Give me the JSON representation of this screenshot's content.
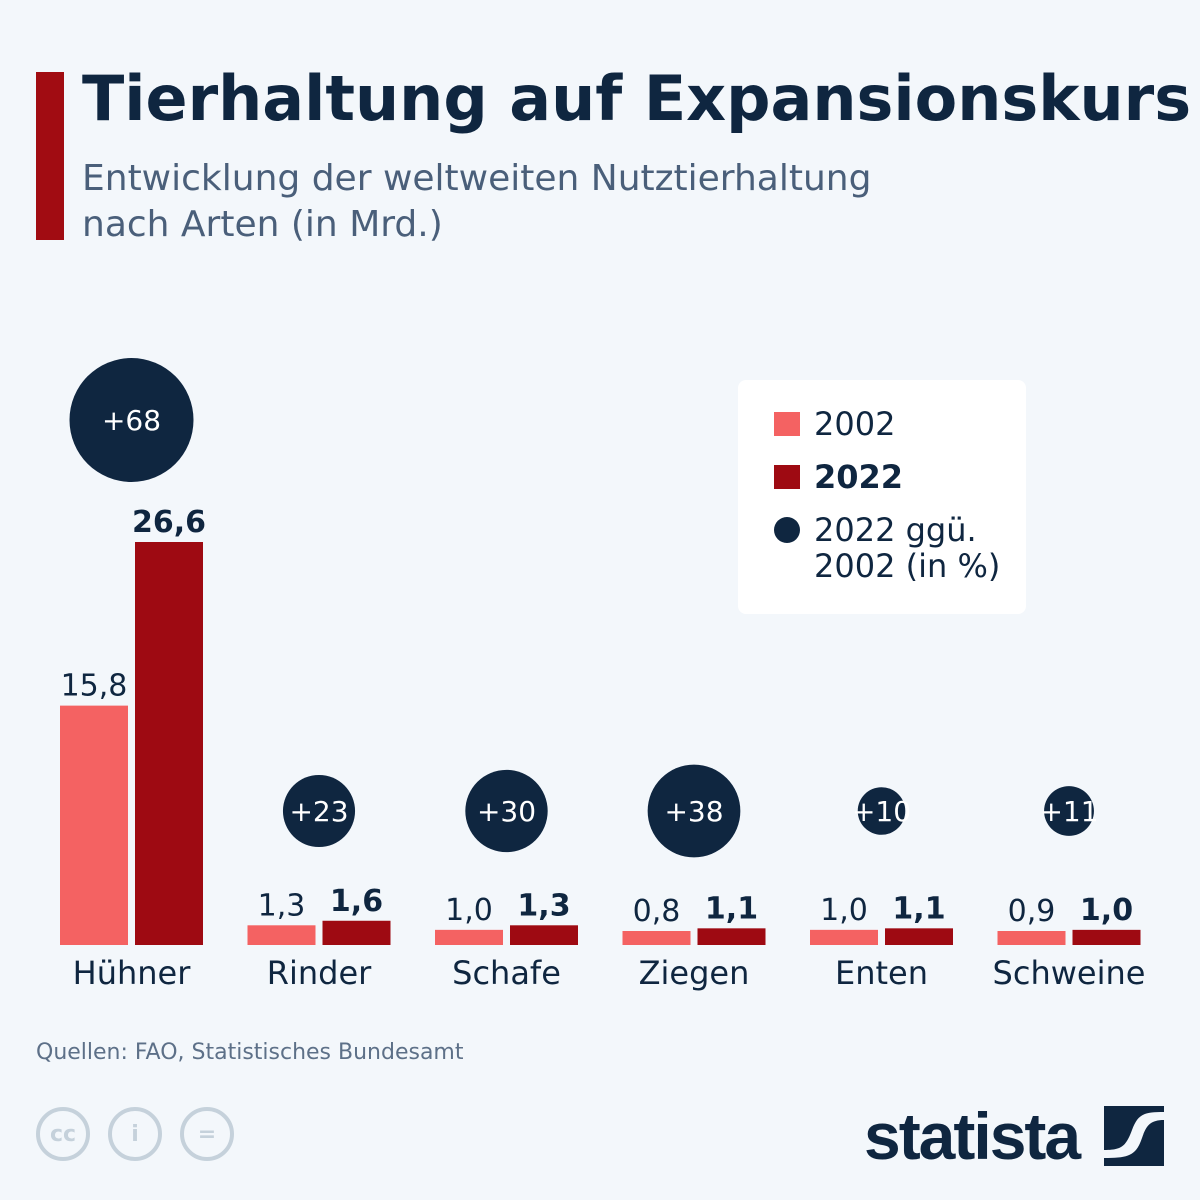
{
  "header": {
    "title": "Tierhaltung auf Expansionskurs",
    "subtitle": "Entwicklung der weltweiten Nutztierhaltung nach Arten (in Mrd.)"
  },
  "chart_data": {
    "type": "bar",
    "categories": [
      "Hühner",
      "Rinder",
      "Schafe",
      "Ziegen",
      "Enten",
      "Schweine"
    ],
    "series": [
      {
        "name": "2002",
        "values": [
          15.8,
          1.3,
          1.0,
          0.8,
          1.0,
          0.9
        ],
        "labels": [
          "15,8",
          "1,3",
          "1,0",
          "0,8",
          "1,0",
          "0,9"
        ],
        "color": "#f46262"
      },
      {
        "name": "2022",
        "values": [
          26.6,
          1.6,
          1.3,
          1.1,
          1.1,
          1.0
        ],
        "labels": [
          "26,6",
          "1,6",
          "1,3",
          "1,1",
          "1,1",
          "1,0"
        ],
        "color": "#9e0a12"
      }
    ],
    "change_pct": {
      "name": "2022 ggü. 2002 (in %)",
      "values": [
        68,
        23,
        30,
        38,
        10,
        11
      ],
      "labels": [
        "+68",
        "+23",
        "+30",
        "+38",
        "+10",
        "+11"
      ],
      "color": "#0f2640"
    },
    "ylim": [
      0,
      26.6
    ],
    "grid": false,
    "legend_placement": "top-right"
  },
  "legend": {
    "items": [
      {
        "label": "2002"
      },
      {
        "label": "2022"
      },
      {
        "label_line1": "2022 ggü.",
        "label_line2": "2002 (in %)"
      }
    ]
  },
  "footer": {
    "source": "Quellen: FAO, Statistisches Bundesamt",
    "logo": "statista",
    "license_icons": [
      "cc-icon",
      "attribution-icon",
      "no-derivatives-icon"
    ]
  }
}
